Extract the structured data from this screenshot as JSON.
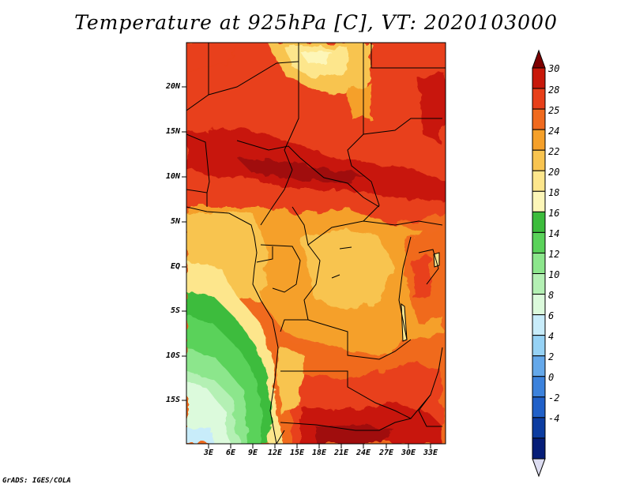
{
  "title": "Temperature at 925hPa [C], VT: 2020103000",
  "credit": "GrADS: IGES/COLA",
  "lat_labels": [
    "20N",
    "15N",
    "10N",
    "5N",
    "EQ",
    "5S",
    "10S",
    "15S"
  ],
  "lon_labels": [
    "3E",
    "6E",
    "9E",
    "12E",
    "15E",
    "18E",
    "21E",
    "24E",
    "27E",
    "30E",
    "33E"
  ],
  "colorbar": {
    "labels": [
      "30",
      "28",
      "25",
      "24",
      "22",
      "20",
      "18",
      "16",
      "14",
      "12",
      "10",
      "8",
      "6",
      "4",
      "2",
      "0",
      "-2",
      "-4"
    ],
    "colors": [
      "#7d0000",
      "#c8180a",
      "#e8401a",
      "#f06a1e",
      "#f5a02a",
      "#f8c450",
      "#fde68c",
      "#fdf6b8",
      "#3cbc3c",
      "#5ad25a",
      "#8ce68c",
      "#b4f0b4",
      "#dcfadc",
      "#c8ecfa",
      "#96d2f5",
      "#64a8ea",
      "#3c82dc",
      "#2060c8",
      "#0c3ca0",
      "#061e78",
      "#dcdcf0"
    ]
  }
}
